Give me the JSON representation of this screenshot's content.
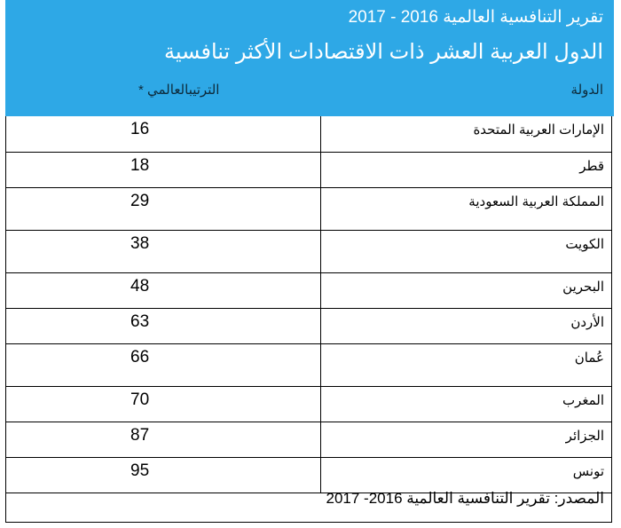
{
  "header": {
    "report_title": "تقرير التنافسية العالمية 2016 - 2017",
    "main_title": "الدول العربية العشر ذات الاقتصادات الأكثر تنافسية",
    "col_country": "الدولة",
    "col_rank": "الترتيبالعالمي *"
  },
  "rows": [
    {
      "country": "الإمارات العربية المتحدة",
      "rank": "16"
    },
    {
      "country": "قطر",
      "rank": "18"
    },
    {
      "country": "المملكة العربية السعودية",
      "rank": "29"
    },
    {
      "country": "الكويت",
      "rank": "38"
    },
    {
      "country": "البحرين",
      "rank": "48"
    },
    {
      "country": "الأردن",
      "rank": "63"
    },
    {
      "country": "عُمان",
      "rank": "66"
    },
    {
      "country": "المغرب",
      "rank": "70"
    },
    {
      "country": "الجزائر",
      "rank": "87"
    },
    {
      "country": "تونس",
      "rank": "95"
    }
  ],
  "source": "المصدر: تقرير التنافسية العالمية 2016- 2017",
  "colors": {
    "header_bg": "#2ea8e6",
    "header_text": "#ffffff"
  }
}
